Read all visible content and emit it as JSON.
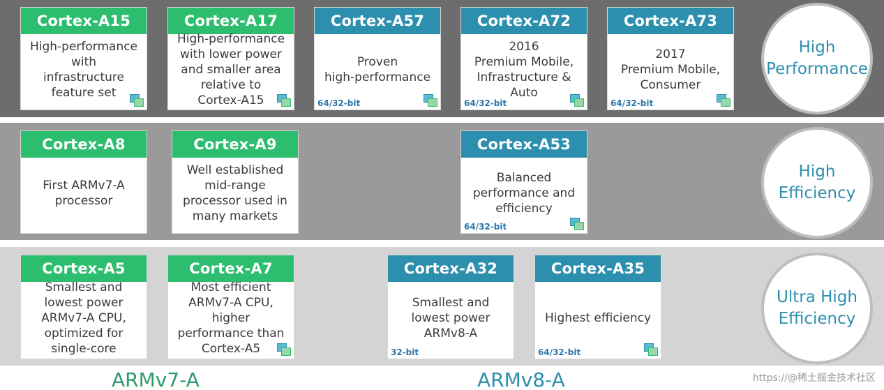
{
  "rows": [
    {
      "label": "High\nPerformance",
      "cores": [
        {
          "name": "Cortex-A15",
          "desc": "High-performance\nwith\ninfrastructure\nfeature set",
          "bits": "",
          "arch": "v7"
        },
        {
          "name": "Cortex-A17",
          "desc": "High-performance\nwith lower power\nand smaller area\nrelative to\nCortex-A15",
          "bits": "",
          "arch": "v7"
        },
        {
          "name": "Cortex-A57",
          "desc": "Proven\nhigh-performance",
          "bits": "64/32-bit",
          "arch": "v8"
        },
        {
          "name": "Cortex-A72",
          "desc": "2016\nPremium Mobile,\nInfrastructure &\nAuto",
          "bits": "64/32-bit",
          "arch": "v8"
        },
        {
          "name": "Cortex-A73",
          "desc": "2017\nPremium Mobile,\nConsumer",
          "bits": "64/32-bit",
          "arch": "v8"
        }
      ]
    },
    {
      "label": "High\nEfficiency",
      "cores": [
        {
          "name": "Cortex-A8",
          "desc": "First ARMv7-A\nprocessor",
          "bits": "",
          "arch": "v7"
        },
        {
          "name": "Cortex-A9",
          "desc": "Well established\nmid-range\nprocessor used in\nmany markets",
          "bits": "",
          "arch": "v7"
        },
        {
          "name": "Cortex-A53",
          "desc": "Balanced\nperformance and\nefficiency",
          "bits": "64/32-bit",
          "arch": "v8"
        }
      ]
    },
    {
      "label": "Ultra High\nEfficiency",
      "cores": [
        {
          "name": "Cortex-A5",
          "desc": "Smallest and\nlowest power\nARMv7-A CPU,\noptimized for\nsingle-core",
          "bits": "",
          "arch": "v7"
        },
        {
          "name": "Cortex-A7",
          "desc": "Most efficient\nARMv7-A CPU,\nhigher\nperformance than\nCortex-A5",
          "bits": "",
          "arch": "v7"
        },
        {
          "name": "Cortex-A32",
          "desc": "Smallest and\nlowest power\nARMv8-A",
          "bits": "32-bit",
          "arch": "v8"
        },
        {
          "name": "Cortex-A35",
          "desc": "Highest efficiency",
          "bits": "64/32-bit",
          "arch": "v8"
        }
      ]
    }
  ],
  "architectures": {
    "v7": "ARMv7-A",
    "v8": "ARMv8-A"
  },
  "watermark": "https://@稀土掘金技术社区",
  "colors": {
    "armv7_header": "#2dbd6e",
    "armv8_header": "#2d8fae",
    "label_text": "#2d8fae"
  },
  "icons": {
    "card_corner": "chip-icon"
  }
}
